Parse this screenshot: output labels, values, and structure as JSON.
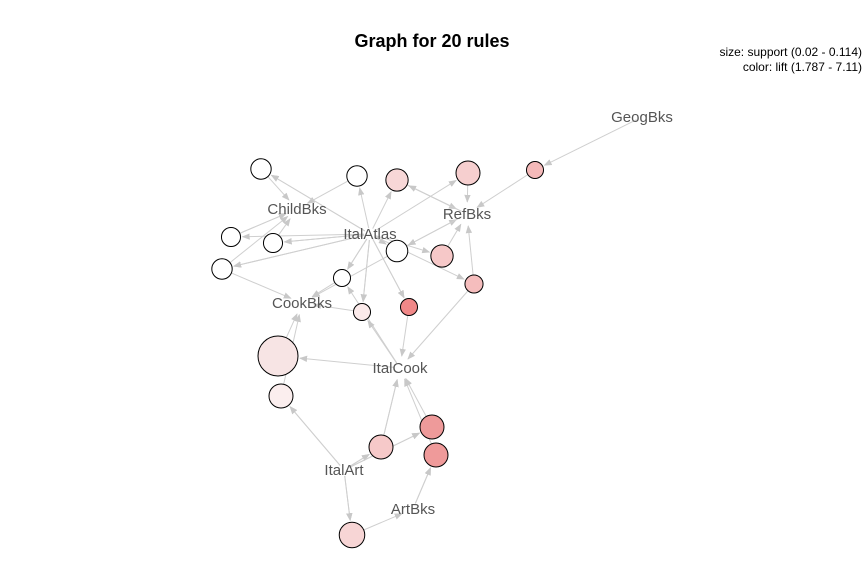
{
  "title": "Graph for 20 rules",
  "legend": {
    "size": "size: support (0.02 - 0.114)",
    "color": "color: lift (1.787 - 7.11)"
  },
  "items": [
    {
      "id": "GeogBks",
      "label": "GeogBks"
    },
    {
      "id": "ChildBks",
      "label": "ChildBks"
    },
    {
      "id": "ItalAtlas",
      "label": "ItalAtlas"
    },
    {
      "id": "RefBks",
      "label": "RefBks"
    },
    {
      "id": "CookBks",
      "label": "CookBks"
    },
    {
      "id": "ItalCook",
      "label": "ItalCook"
    },
    {
      "id": "ItalArt",
      "label": "ItalArt"
    },
    {
      "id": "ArtBks",
      "label": "ArtBks"
    }
  ],
  "rules": [
    {
      "id": "r1",
      "fill": "#ffffff",
      "support_level": 0.15,
      "from": [
        "ItalAtlas"
      ],
      "to": "ChildBks"
    },
    {
      "id": "r2",
      "fill": "#ffffff",
      "support_level": 0.15,
      "from": [
        "ItalAtlas"
      ],
      "to": "ChildBks"
    },
    {
      "id": "r3",
      "fill": "#f7d7d7",
      "support_level": 0.2,
      "from": [
        "ItalAtlas"
      ],
      "to": "RefBks"
    },
    {
      "id": "r4",
      "fill": "#f6cfcf",
      "support_level": 0.25,
      "from": [
        "ItalAtlas"
      ],
      "to": "RefBks"
    },
    {
      "id": "r5",
      "fill": "#f4b9b9",
      "support_level": 0.08,
      "from": [
        "GeogBks"
      ],
      "to": "RefBks"
    },
    {
      "id": "r6",
      "fill": "#ffffff",
      "support_level": 0.12,
      "from": [
        "ItalAtlas"
      ],
      "to": "ChildBks"
    },
    {
      "id": "r7",
      "fill": "#ffffff",
      "support_level": 0.12,
      "from": [
        "ItalAtlas"
      ],
      "to": "ChildBks"
    },
    {
      "id": "r8",
      "fill": "#ffffff",
      "support_level": 0.15,
      "from": [
        "ItalAtlas"
      ],
      "to": "CookBks"
    },
    {
      "id": "r9",
      "fill": "#ffffff",
      "support_level": 0.18,
      "from": [
        "ItalAtlas"
      ],
      "to": "RefBks"
    },
    {
      "id": "r10",
      "fill": "#f6c8c8",
      "support_level": 0.2,
      "from": [
        "ItalAtlas"
      ],
      "to": "RefBks"
    },
    {
      "id": "r11",
      "fill": "#ffffff",
      "support_level": 0.08,
      "from": [
        "ItalAtlas"
      ],
      "to": "CookBks"
    },
    {
      "id": "r12",
      "fill": "#f5bdbd",
      "support_level": 0.1,
      "from": [
        "ItalAtlas"
      ],
      "to": "RefBks"
    },
    {
      "id": "r13",
      "fill": "#fbeaea",
      "support_level": 0.08,
      "from": [
        "ItalAtlas"
      ],
      "to": "CookBks"
    },
    {
      "id": "r14",
      "fill": "#f08888",
      "support_level": 0.08,
      "from": [
        "ItalAtlas"
      ],
      "to": "ItalCook"
    },
    {
      "id": "r15",
      "fill": "#f7e4e4",
      "support_level": 1.0,
      "from": [
        "ItalCook"
      ],
      "to": "CookBks"
    },
    {
      "id": "r16",
      "fill": "#fbeeee",
      "support_level": 0.25,
      "from": [
        "ItalArt"
      ],
      "to": "CookBks"
    },
    {
      "id": "r17",
      "fill": "#f6c9c9",
      "support_level": 0.25,
      "from": [
        "ItalArt"
      ],
      "to": "ItalCook"
    },
    {
      "id": "r18",
      "fill": "#ee9a9a",
      "support_level": 0.25,
      "from": [
        "ItalArt"
      ],
      "to": "ItalCook"
    },
    {
      "id": "r19",
      "fill": "#ef9a9a",
      "support_level": 0.25,
      "from": [
        "ArtBks"
      ],
      "to": "ItalCook"
    },
    {
      "id": "r20",
      "fill": "#f7d5d5",
      "support_level": 0.3,
      "from": [
        "ItalArt"
      ],
      "to": "ArtBks"
    }
  ]
}
